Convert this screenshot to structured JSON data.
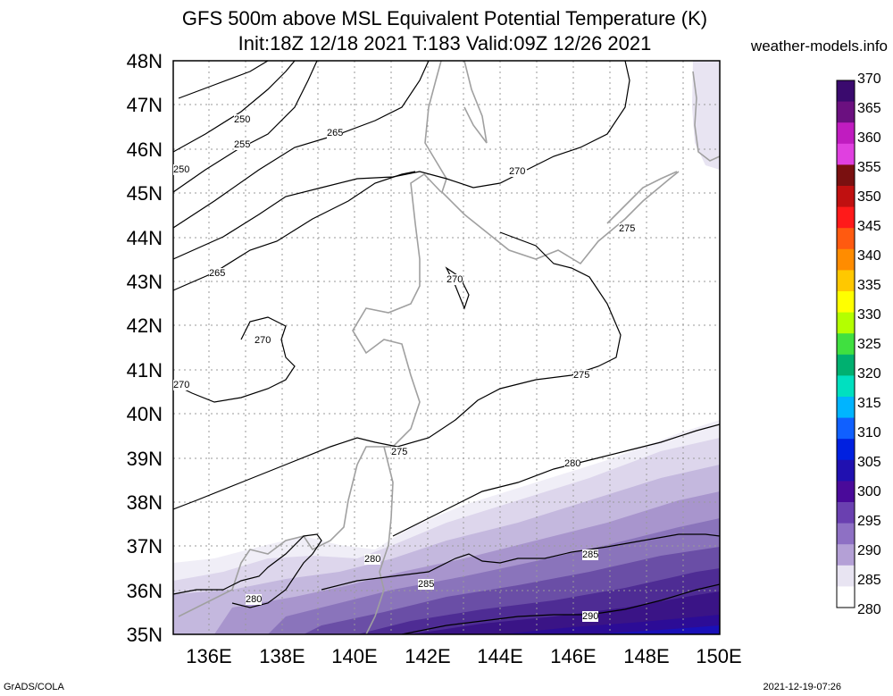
{
  "title": {
    "line1": "GFS 500m above MSL Equivalent Potential Temperature (K)",
    "line2": "Init:18Z 12/18 2021 T:183 Valid:09Z 12/26 2021"
  },
  "site": "weather-models.info",
  "footer": {
    "left": "GrADS/COLA",
    "right": "2021-12-19-07:26"
  },
  "axes": {
    "lat_labels": [
      "48N",
      "47N",
      "46N",
      "45N",
      "44N",
      "43N",
      "42N",
      "41N",
      "40N",
      "39N",
      "38N",
      "37N",
      "36N",
      "35N"
    ],
    "lon_labels": [
      "136E",
      "138E",
      "140E",
      "142E",
      "144E",
      "146E",
      "148E",
      "150E"
    ]
  },
  "colorbar": {
    "labels": [
      "370",
      "365",
      "360",
      "355",
      "350",
      "345",
      "340",
      "335",
      "330",
      "325",
      "320",
      "315",
      "310",
      "305",
      "300",
      "295",
      "290",
      "285",
      "280"
    ],
    "colors": [
      "#3a0a6e",
      "#6b1080",
      "#c01cc0",
      "#e040e0",
      "#7a1010",
      "#c01010",
      "#ff1a1a",
      "#ff5a10",
      "#ff8c00",
      "#ffc800",
      "#ffff00",
      "#b4ff00",
      "#40e040",
      "#00b070",
      "#00e0c0",
      "#00b4ff",
      "#1060ff",
      "#0020e0",
      "#2010b0",
      "#4a0a9a",
      "#6a40b0",
      "#8e70c4",
      "#b4a0d6",
      "#e8e4f2",
      "#ffffff"
    ]
  },
  "contour_labels": [
    "250",
    "255",
    "250",
    "265",
    "265",
    "270",
    "270",
    "270",
    "275",
    "270",
    "275",
    "275",
    "280",
    "280",
    "280",
    "285",
    "285",
    "290"
  ]
}
